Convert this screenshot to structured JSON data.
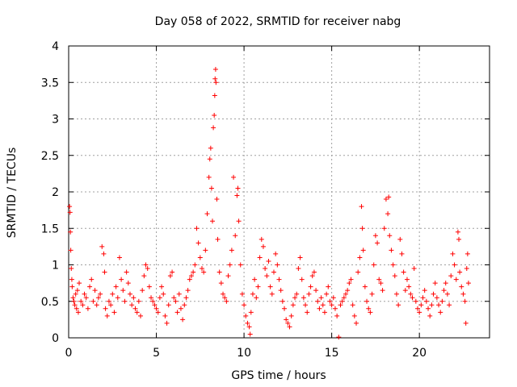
{
  "chart_data": {
    "type": "scatter",
    "title": "Day 058 of 2022, SRMTID for receiver nabg",
    "xlabel": "GPS time / hours",
    "ylabel": "SRMTID / TECUs",
    "xlim": [
      0,
      24
    ],
    "ylim": [
      0,
      4
    ],
    "xticks": [
      0,
      5,
      10,
      15,
      20
    ],
    "yticks": [
      0,
      0.5,
      1,
      1.5,
      2,
      2.5,
      3,
      3.5,
      4
    ],
    "ytick_labels": [
      "0",
      "0.5",
      "1",
      "1.5",
      "2",
      "2.5",
      "3",
      "3.5",
      "4"
    ],
    "grid": true,
    "marker": "+",
    "series": [
      {
        "name": "SRMTID",
        "color": "#ff0000",
        "points": [
          [
            0.05,
            1.8
          ],
          [
            0.08,
            1.72
          ],
          [
            0.1,
            1.45
          ],
          [
            0.12,
            1.2
          ],
          [
            0.15,
            0.95
          ],
          [
            0.18,
            0.8
          ],
          [
            0.2,
            0.7
          ],
          [
            0.25,
            0.55
          ],
          [
            0.3,
            0.5
          ],
          [
            0.35,
            0.45
          ],
          [
            0.4,
            0.6
          ],
          [
            0.45,
            0.4
          ],
          [
            0.5,
            0.65
          ],
          [
            0.55,
            0.35
          ],
          [
            0.6,
            0.75
          ],
          [
            0.7,
            0.5
          ],
          [
            0.8,
            0.45
          ],
          [
            0.9,
            0.6
          ],
          [
            1.0,
            0.55
          ],
          [
            1.1,
            0.4
          ],
          [
            1.2,
            0.7
          ],
          [
            1.3,
            0.8
          ],
          [
            1.4,
            0.5
          ],
          [
            1.5,
            0.65
          ],
          [
            1.6,
            0.45
          ],
          [
            1.7,
            0.55
          ],
          [
            1.8,
            0.6
          ],
          [
            1.9,
            1.25
          ],
          [
            2.0,
            1.15
          ],
          [
            2.05,
            0.9
          ],
          [
            2.1,
            0.4
          ],
          [
            2.2,
            0.3
          ],
          [
            2.3,
            0.5
          ],
          [
            2.4,
            0.45
          ],
          [
            2.5,
            0.6
          ],
          [
            2.6,
            0.35
          ],
          [
            2.7,
            0.7
          ],
          [
            2.8,
            0.55
          ],
          [
            2.9,
            1.1
          ],
          [
            3.0,
            0.8
          ],
          [
            3.1,
            0.65
          ],
          [
            3.2,
            0.5
          ],
          [
            3.3,
            0.9
          ],
          [
            3.4,
            0.75
          ],
          [
            3.5,
            0.6
          ],
          [
            3.6,
            0.45
          ],
          [
            3.7,
            0.55
          ],
          [
            3.8,
            0.4
          ],
          [
            3.9,
            0.35
          ],
          [
            4.0,
            0.5
          ],
          [
            4.1,
            0.3
          ],
          [
            4.2,
            0.65
          ],
          [
            4.3,
            0.85
          ],
          [
            4.4,
            1.0
          ],
          [
            4.5,
            0.95
          ],
          [
            4.6,
            0.7
          ],
          [
            4.7,
            0.55
          ],
          [
            4.8,
            0.5
          ],
          [
            4.9,
            0.45
          ],
          [
            5.0,
            0.4
          ],
          [
            5.1,
            0.35
          ],
          [
            5.2,
            0.55
          ],
          [
            5.3,
            0.7
          ],
          [
            5.4,
            0.6
          ],
          [
            5.5,
            0.3
          ],
          [
            5.6,
            0.2
          ],
          [
            5.7,
            0.45
          ],
          [
            5.8,
            0.85
          ],
          [
            5.9,
            0.9
          ],
          [
            6.0,
            0.55
          ],
          [
            6.1,
            0.5
          ],
          [
            6.2,
            0.35
          ],
          [
            6.3,
            0.6
          ],
          [
            6.4,
            0.4
          ],
          [
            6.5,
            0.25
          ],
          [
            6.6,
            0.45
          ],
          [
            6.7,
            0.55
          ],
          [
            6.8,
            0.65
          ],
          [
            6.9,
            0.8
          ],
          [
            7.0,
            0.85
          ],
          [
            7.1,
            0.9
          ],
          [
            7.2,
            1.0
          ],
          [
            7.3,
            1.5
          ],
          [
            7.4,
            1.3
          ],
          [
            7.5,
            1.1
          ],
          [
            7.6,
            0.95
          ],
          [
            7.7,
            0.9
          ],
          [
            7.8,
            1.2
          ],
          [
            7.9,
            1.7
          ],
          [
            8.0,
            2.2
          ],
          [
            8.05,
            2.45
          ],
          [
            8.1,
            2.6
          ],
          [
            8.15,
            2.05
          ],
          [
            8.2,
            1.6
          ],
          [
            8.25,
            2.88
          ],
          [
            8.3,
            3.05
          ],
          [
            8.33,
            3.32
          ],
          [
            8.35,
            3.55
          ],
          [
            8.38,
            3.68
          ],
          [
            8.4,
            3.5
          ],
          [
            8.45,
            1.9
          ],
          [
            8.5,
            1.35
          ],
          [
            8.6,
            0.9
          ],
          [
            8.7,
            0.75
          ],
          [
            8.8,
            0.6
          ],
          [
            8.9,
            0.55
          ],
          [
            9.0,
            0.5
          ],
          [
            9.1,
            0.85
          ],
          [
            9.2,
            1.0
          ],
          [
            9.3,
            1.2
          ],
          [
            9.4,
            2.2
          ],
          [
            9.5,
            1.4
          ],
          [
            9.6,
            1.95
          ],
          [
            9.65,
            2.05
          ],
          [
            9.7,
            1.6
          ],
          [
            9.8,
            1.0
          ],
          [
            9.9,
            0.6
          ],
          [
            10.0,
            0.45
          ],
          [
            10.1,
            0.3
          ],
          [
            10.2,
            0.2
          ],
          [
            10.3,
            0.15
          ],
          [
            10.35,
            0.05
          ],
          [
            10.4,
            0.35
          ],
          [
            10.5,
            0.6
          ],
          [
            10.6,
            0.8
          ],
          [
            10.7,
            0.55
          ],
          [
            10.8,
            0.7
          ],
          [
            10.9,
            1.1
          ],
          [
            11.0,
            1.35
          ],
          [
            11.1,
            1.25
          ],
          [
            11.2,
            0.95
          ],
          [
            11.3,
            0.85
          ],
          [
            11.4,
            1.05
          ],
          [
            11.5,
            0.7
          ],
          [
            11.6,
            0.6
          ],
          [
            11.7,
            0.9
          ],
          [
            11.8,
            1.15
          ],
          [
            11.9,
            1.0
          ],
          [
            12.0,
            0.8
          ],
          [
            12.1,
            0.65
          ],
          [
            12.2,
            0.5
          ],
          [
            12.3,
            0.4
          ],
          [
            12.4,
            0.25
          ],
          [
            12.5,
            0.2
          ],
          [
            12.6,
            0.15
          ],
          [
            12.7,
            0.3
          ],
          [
            12.8,
            0.45
          ],
          [
            12.9,
            0.55
          ],
          [
            13.0,
            0.6
          ],
          [
            13.1,
            0.95
          ],
          [
            13.2,
            1.1
          ],
          [
            13.3,
            0.8
          ],
          [
            13.4,
            0.55
          ],
          [
            13.5,
            0.45
          ],
          [
            13.6,
            0.35
          ],
          [
            13.7,
            0.6
          ],
          [
            13.8,
            0.7
          ],
          [
            13.9,
            0.85
          ],
          [
            14.0,
            0.9
          ],
          [
            14.1,
            0.65
          ],
          [
            14.2,
            0.5
          ],
          [
            14.3,
            0.4
          ],
          [
            14.4,
            0.55
          ],
          [
            14.5,
            0.45
          ],
          [
            14.6,
            0.35
          ],
          [
            14.7,
            0.6
          ],
          [
            14.8,
            0.7
          ],
          [
            14.9,
            0.5
          ],
          [
            15.0,
            0.45
          ],
          [
            15.1,
            0.55
          ],
          [
            15.2,
            0.4
          ],
          [
            15.3,
            0.3
          ],
          [
            15.4,
            0.01
          ],
          [
            15.5,
            0.45
          ],
          [
            15.6,
            0.5
          ],
          [
            15.7,
            0.55
          ],
          [
            15.8,
            0.6
          ],
          [
            15.9,
            0.65
          ],
          [
            16.0,
            0.75
          ],
          [
            16.1,
            0.8
          ],
          [
            16.2,
            0.45
          ],
          [
            16.3,
            0.3
          ],
          [
            16.4,
            0.2
          ],
          [
            16.5,
            0.9
          ],
          [
            16.6,
            1.1
          ],
          [
            16.7,
            1.8
          ],
          [
            16.75,
            1.5
          ],
          [
            16.8,
            1.2
          ],
          [
            16.9,
            0.7
          ],
          [
            17.0,
            0.5
          ],
          [
            17.1,
            0.4
          ],
          [
            17.2,
            0.35
          ],
          [
            17.3,
            0.6
          ],
          [
            17.4,
            1.0
          ],
          [
            17.5,
            1.4
          ],
          [
            17.6,
            1.3
          ],
          [
            17.7,
            0.8
          ],
          [
            17.8,
            0.75
          ],
          [
            17.9,
            0.65
          ],
          [
            18.0,
            1.5
          ],
          [
            18.1,
            1.9
          ],
          [
            18.2,
            1.7
          ],
          [
            18.25,
            1.93
          ],
          [
            18.3,
            1.4
          ],
          [
            18.4,
            1.2
          ],
          [
            18.5,
            1.0
          ],
          [
            18.6,
            0.85
          ],
          [
            18.7,
            0.6
          ],
          [
            18.8,
            0.45
          ],
          [
            18.9,
            1.35
          ],
          [
            19.0,
            1.15
          ],
          [
            19.1,
            0.9
          ],
          [
            19.2,
            0.65
          ],
          [
            19.3,
            0.8
          ],
          [
            19.4,
            0.7
          ],
          [
            19.5,
            0.6
          ],
          [
            19.6,
            0.55
          ],
          [
            19.7,
            0.95
          ],
          [
            19.8,
            0.5
          ],
          [
            19.9,
            0.4
          ],
          [
            20.0,
            0.35
          ],
          [
            20.1,
            0.45
          ],
          [
            20.2,
            0.55
          ],
          [
            20.3,
            0.65
          ],
          [
            20.4,
            0.5
          ],
          [
            20.5,
            0.4
          ],
          [
            20.6,
            0.3
          ],
          [
            20.7,
            0.45
          ],
          [
            20.8,
            0.6
          ],
          [
            20.9,
            0.75
          ],
          [
            21.0,
            0.55
          ],
          [
            21.1,
            0.45
          ],
          [
            21.2,
            0.35
          ],
          [
            21.3,
            0.5
          ],
          [
            21.4,
            0.65
          ],
          [
            21.5,
            0.75
          ],
          [
            21.6,
            0.6
          ],
          [
            21.7,
            0.45
          ],
          [
            21.8,
            0.85
          ],
          [
            21.9,
            1.15
          ],
          [
            22.0,
            1.0
          ],
          [
            22.1,
            0.8
          ],
          [
            22.2,
            1.45
          ],
          [
            22.25,
            1.35
          ],
          [
            22.3,
            0.9
          ],
          [
            22.4,
            0.7
          ],
          [
            22.5,
            0.6
          ],
          [
            22.6,
            0.5
          ],
          [
            22.65,
            0.2
          ],
          [
            22.7,
            0.95
          ],
          [
            22.75,
            1.15
          ],
          [
            22.8,
            0.75
          ]
        ]
      }
    ]
  }
}
